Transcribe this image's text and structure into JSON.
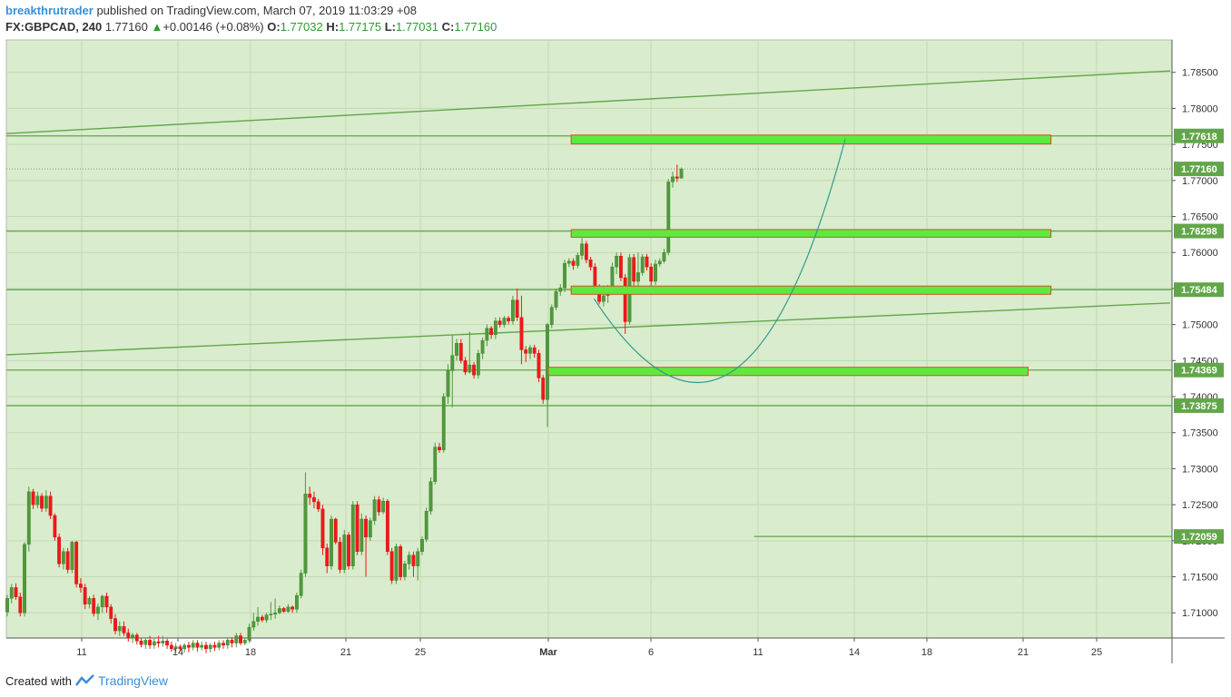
{
  "header": {
    "author": "breakthrutrader",
    "published_text": "published on TradingView.com, March 07, 2019 11:03:29 +08",
    "symbol": "FX:GBPCAD, 240",
    "last": "1.77160",
    "change": "+0.00146 (+0.08%)",
    "o_label": "O:",
    "o_val": "1.77032",
    "h_label": "H:",
    "h_val": "1.77175",
    "l_label": "L:",
    "l_val": "1.77031",
    "c_label": "C:",
    "c_val": "1.77160"
  },
  "footer": {
    "created_with": "Created with",
    "brand": "TradingView"
  },
  "chart_data": {
    "type": "candlestick",
    "symbol": "FX:GBPCAD",
    "interval": "240",
    "colors": {
      "background": "#d9eccd",
      "up": "#4f9a3b",
      "down": "#f01818",
      "line": "#62a64a",
      "zone_fill": "#5ee93e",
      "zone_border": "#c8561f",
      "curve": "#2f9b8c"
    },
    "ylim": [
      1.7065,
      1.7895
    ],
    "y_ticks": [
      "1.71000",
      "1.71500",
      "1.72000",
      "1.72500",
      "1.73000",
      "1.73500",
      "1.74000",
      "1.74500",
      "1.75000",
      "1.75500",
      "1.76000",
      "1.76500",
      "1.77000",
      "1.77500",
      "1.78000",
      "1.78500"
    ],
    "x_ticks": [
      "11",
      "14",
      "18",
      "21",
      "25",
      "Mar",
      "6",
      "11",
      "14",
      "18",
      "21",
      "25"
    ],
    "price_labels": [
      "1.77618",
      "1.77160",
      "1.76298",
      "1.75484",
      "1.74369",
      "1.73875",
      "1.72059"
    ],
    "candles": [
      [
        1.7101,
        1.712,
        1.7095,
        1.7125
      ],
      [
        1.712,
        1.7135,
        1.7113,
        1.714
      ],
      [
        1.7135,
        1.7122,
        1.7118,
        1.7141
      ],
      [
        1.7122,
        1.71,
        1.7095,
        1.7128
      ],
      [
        1.71,
        1.7195,
        1.7095,
        1.7198
      ],
      [
        1.7195,
        1.7268,
        1.7185,
        1.7275
      ],
      [
        1.7268,
        1.725,
        1.7244,
        1.7272
      ],
      [
        1.725,
        1.7262,
        1.7245,
        1.7268
      ],
      [
        1.7262,
        1.7245,
        1.724,
        1.7266
      ],
      [
        1.7245,
        1.7262,
        1.724,
        1.727
      ],
      [
        1.7262,
        1.7235,
        1.723,
        1.7268
      ],
      [
        1.7235,
        1.7205,
        1.72,
        1.7238
      ],
      [
        1.7205,
        1.7168,
        1.7163,
        1.721
      ],
      [
        1.7168,
        1.7185,
        1.716,
        1.719
      ],
      [
        1.7185,
        1.716,
        1.7155,
        1.719
      ],
      [
        1.716,
        1.7198,
        1.7155,
        1.72
      ],
      [
        1.7198,
        1.714,
        1.7135,
        1.72
      ],
      [
        1.714,
        1.7135,
        1.7128,
        1.7148
      ],
      [
        1.7135,
        1.7112,
        1.7105,
        1.714
      ],
      [
        1.7112,
        1.712,
        1.7106,
        1.7123
      ],
      [
        1.712,
        1.7099,
        1.7095,
        1.7125
      ],
      [
        1.7099,
        1.7108,
        1.709,
        1.7113
      ],
      [
        1.7108,
        1.7123,
        1.71,
        1.7125
      ],
      [
        1.7123,
        1.7108,
        1.71,
        1.7128
      ],
      [
        1.7108,
        1.7092,
        1.7085,
        1.7112
      ],
      [
        1.7092,
        1.7075,
        1.707,
        1.7098
      ],
      [
        1.7075,
        1.7081,
        1.7068,
        1.7088
      ],
      [
        1.7081,
        1.7072,
        1.7068,
        1.7088
      ],
      [
        1.7072,
        1.7065,
        1.706,
        1.7078
      ],
      [
        1.7065,
        1.7069,
        1.7058,
        1.7072
      ],
      [
        1.7069,
        1.7061,
        1.7056,
        1.7072
      ],
      [
        1.7061,
        1.7056,
        1.7052,
        1.7065
      ],
      [
        1.7056,
        1.7062,
        1.705,
        1.7066
      ],
      [
        1.7062,
        1.7055,
        1.705,
        1.7068
      ],
      [
        1.7055,
        1.706,
        1.705,
        1.7064
      ],
      [
        1.706,
        1.7058,
        1.7052,
        1.7068
      ],
      [
        1.7058,
        1.7061,
        1.7053,
        1.7068
      ],
      [
        1.7061,
        1.7055,
        1.705,
        1.7064
      ],
      [
        1.7055,
        1.705,
        1.7046,
        1.706
      ],
      [
        1.705,
        1.7053,
        1.7045,
        1.7058
      ],
      [
        1.7053,
        1.705,
        1.7046,
        1.7056
      ],
      [
        1.705,
        1.7055,
        1.7045,
        1.7058
      ],
      [
        1.7055,
        1.7052,
        1.7045,
        1.706
      ],
      [
        1.7052,
        1.7058,
        1.7048,
        1.7062
      ],
      [
        1.7058,
        1.7052,
        1.7046,
        1.7062
      ],
      [
        1.7052,
        1.7055,
        1.7048,
        1.706
      ],
      [
        1.7055,
        1.705,
        1.7044,
        1.706
      ],
      [
        1.705,
        1.7055,
        1.7045,
        1.7058
      ],
      [
        1.7055,
        1.7052,
        1.7047,
        1.706
      ],
      [
        1.7052,
        1.7058,
        1.7048,
        1.7062
      ],
      [
        1.7058,
        1.7055,
        1.705,
        1.7062
      ],
      [
        1.7055,
        1.7062,
        1.705,
        1.7066
      ],
      [
        1.7062,
        1.7058,
        1.7052,
        1.7066
      ],
      [
        1.7058,
        1.7068,
        1.7052,
        1.7072
      ],
      [
        1.7068,
        1.7058,
        1.7055,
        1.7072
      ],
      [
        1.7058,
        1.7062,
        1.7055,
        1.7066
      ],
      [
        1.7062,
        1.708,
        1.7058,
        1.7085
      ],
      [
        1.708,
        1.7088,
        1.7075,
        1.71
      ],
      [
        1.7088,
        1.7094,
        1.7082,
        1.7108
      ],
      [
        1.7094,
        1.709,
        1.7087,
        1.7097
      ],
      [
        1.709,
        1.7097,
        1.7086,
        1.71
      ],
      [
        1.7097,
        1.7098,
        1.709,
        1.7115
      ],
      [
        1.7098,
        1.71,
        1.7092,
        1.712
      ],
      [
        1.71,
        1.7106,
        1.7098,
        1.711
      ],
      [
        1.7106,
        1.7102,
        1.71,
        1.7108
      ],
      [
        1.7102,
        1.7108,
        1.71,
        1.7112
      ],
      [
        1.7108,
        1.7105,
        1.71,
        1.711
      ],
      [
        1.7105,
        1.7124,
        1.71,
        1.7128
      ],
      [
        1.7124,
        1.7155,
        1.712,
        1.716
      ],
      [
        1.7155,
        1.7265,
        1.715,
        1.7295
      ],
      [
        1.7265,
        1.726,
        1.725,
        1.7275
      ],
      [
        1.726,
        1.7254,
        1.7245,
        1.7268
      ],
      [
        1.7254,
        1.7244,
        1.724,
        1.7258
      ],
      [
        1.7244,
        1.719,
        1.718,
        1.725
      ],
      [
        1.719,
        1.7165,
        1.7155,
        1.7196
      ],
      [
        1.7165,
        1.723,
        1.716,
        1.7235
      ],
      [
        1.723,
        1.7198,
        1.7195,
        1.7232
      ],
      [
        1.7198,
        1.716,
        1.7155,
        1.7205
      ],
      [
        1.716,
        1.7208,
        1.7155,
        1.7215
      ],
      [
        1.7208,
        1.7165,
        1.716,
        1.7212
      ],
      [
        1.7165,
        1.725,
        1.716,
        1.7255
      ],
      [
        1.725,
        1.7185,
        1.718,
        1.7255
      ],
      [
        1.7185,
        1.723,
        1.718,
        1.7238
      ],
      [
        1.723,
        1.7205,
        1.715,
        1.7235
      ],
      [
        1.7205,
        1.7228,
        1.72,
        1.7232
      ],
      [
        1.7228,
        1.7257,
        1.7222,
        1.7262
      ],
      [
        1.7257,
        1.724,
        1.7235,
        1.7262
      ],
      [
        1.724,
        1.7255,
        1.7237,
        1.726
      ],
      [
        1.7255,
        1.7185,
        1.718,
        1.7258
      ],
      [
        1.7185,
        1.7145,
        1.714,
        1.719
      ],
      [
        1.7145,
        1.7192,
        1.714,
        1.7196
      ],
      [
        1.7192,
        1.715,
        1.7145,
        1.7195
      ],
      [
        1.715,
        1.7168,
        1.7145,
        1.7172
      ],
      [
        1.7168,
        1.718,
        1.716,
        1.7185
      ],
      [
        1.718,
        1.7165,
        1.715,
        1.7185
      ],
      [
        1.7165,
        1.7185,
        1.7145,
        1.719
      ],
      [
        1.7185,
        1.7202,
        1.718,
        1.7206
      ],
      [
        1.7202,
        1.7241,
        1.7198,
        1.7246
      ],
      [
        1.7241,
        1.7282,
        1.7236,
        1.7288
      ],
      [
        1.7282,
        1.733,
        1.7278,
        1.7336
      ],
      [
        1.733,
        1.7326,
        1.7322,
        1.7336
      ],
      [
        1.7326,
        1.74,
        1.7322,
        1.7405
      ],
      [
        1.74,
        1.7436,
        1.739,
        1.7445
      ],
      [
        1.7436,
        1.7457,
        1.7385,
        1.7485
      ],
      [
        1.7457,
        1.7474,
        1.745,
        1.748
      ],
      [
        1.7474,
        1.745,
        1.7446,
        1.748
      ],
      [
        1.745,
        1.7434,
        1.743,
        1.7455
      ],
      [
        1.7434,
        1.7444,
        1.7432,
        1.749
      ],
      [
        1.7444,
        1.743,
        1.7425,
        1.7448
      ],
      [
        1.743,
        1.746,
        1.7425,
        1.7465
      ],
      [
        1.746,
        1.7478,
        1.7452,
        1.7482
      ],
      [
        1.7478,
        1.7495,
        1.747,
        1.75
      ],
      [
        1.7495,
        1.7486,
        1.748,
        1.7498
      ],
      [
        1.7486,
        1.7505,
        1.748,
        1.751
      ],
      [
        1.7505,
        1.75,
        1.7496,
        1.751
      ],
      [
        1.75,
        1.7509,
        1.7496,
        1.7512
      ],
      [
        1.7509,
        1.7505,
        1.75,
        1.7512
      ],
      [
        1.7505,
        1.7534,
        1.75,
        1.754
      ],
      [
        1.7534,
        1.751,
        1.7505,
        1.755
      ],
      [
        1.751,
        1.7465,
        1.7445,
        1.754
      ],
      [
        1.7465,
        1.746,
        1.7448,
        1.747
      ],
      [
        1.746,
        1.7468,
        1.7452,
        1.7472
      ],
      [
        1.7468,
        1.746,
        1.7454,
        1.7472
      ],
      [
        1.746,
        1.7426,
        1.742,
        1.7465
      ],
      [
        1.7426,
        1.7396,
        1.739,
        1.743
      ],
      [
        1.7396,
        1.75,
        1.7358,
        1.7502
      ],
      [
        1.75,
        1.7524,
        1.7495,
        1.7528
      ],
      [
        1.7524,
        1.7546,
        1.752,
        1.755
      ],
      [
        1.7546,
        1.7551,
        1.754,
        1.7556
      ],
      [
        1.7551,
        1.7585,
        1.7545,
        1.759
      ],
      [
        1.7585,
        1.7588,
        1.758,
        1.7592
      ],
      [
        1.7588,
        1.7582,
        1.7576,
        1.7592
      ],
      [
        1.7582,
        1.7596,
        1.7578,
        1.76
      ],
      [
        1.7596,
        1.7612,
        1.759,
        1.762
      ],
      [
        1.7612,
        1.759,
        1.7585,
        1.7616
      ],
      [
        1.759,
        1.758,
        1.7575,
        1.7594
      ],
      [
        1.758,
        1.7552,
        1.7547,
        1.7585
      ],
      [
        1.7552,
        1.7532,
        1.7528,
        1.7556
      ],
      [
        1.7532,
        1.754,
        1.7525,
        1.7545
      ],
      [
        1.754,
        1.755,
        1.753,
        1.7555
      ],
      [
        1.755,
        1.758,
        1.7545,
        1.7586
      ],
      [
        1.758,
        1.7595,
        1.757,
        1.76
      ],
      [
        1.7595,
        1.7565,
        1.756,
        1.76
      ],
      [
        1.7565,
        1.7504,
        1.7487,
        1.757
      ],
      [
        1.7504,
        1.7593,
        1.75,
        1.7598
      ],
      [
        1.7593,
        1.756,
        1.7545,
        1.7598
      ],
      [
        1.756,
        1.7572,
        1.755,
        1.76
      ],
      [
        1.7572,
        1.7594,
        1.7568,
        1.7598
      ],
      [
        1.7594,
        1.758,
        1.7575,
        1.7598
      ],
      [
        1.758,
        1.756,
        1.755,
        1.7585
      ],
      [
        1.756,
        1.7584,
        1.7555,
        1.759
      ],
      [
        1.7584,
        1.7588,
        1.758,
        1.7592
      ],
      [
        1.7588,
        1.76,
        1.7585,
        1.7605
      ],
      [
        1.76,
        1.7698,
        1.7596,
        1.7702
      ],
      [
        1.7698,
        1.7705,
        1.769,
        1.7712
      ],
      [
        1.7705,
        1.7703,
        1.7698,
        1.7722
      ],
      [
        1.7703,
        1.7716,
        1.7703,
        1.7718
      ]
    ],
    "horizontal_lines": [
      1.77618,
      1.76298,
      1.75484,
      1.74369,
      1.73875
    ],
    "short_line": {
      "y": 1.72059,
      "x_from": "Mar 10",
      "x_to": "end"
    },
    "last_price_line": 1.7716,
    "zones": [
      {
        "y_top": 1.7763,
        "y_bottom": 1.77506,
        "x_from": "Mar 2",
        "x_to": "Mar 23"
      },
      {
        "y_top": 1.76318,
        "y_bottom": 1.76212,
        "x_from": "Mar 2",
        "x_to": "Mar 23"
      },
      {
        "y_top": 1.75534,
        "y_bottom": 1.7542,
        "x_from": "Mar 2",
        "x_to": "Mar 23"
      },
      {
        "y_top": 1.74407,
        "y_bottom": 1.74293,
        "x_from": "Mar 1",
        "x_to": "Mar 22"
      }
    ],
    "trend_lines": [
      {
        "from": [
          "start",
          1.7765
        ],
        "to": [
          "end",
          1.7852
        ]
      },
      {
        "from": [
          "start",
          1.7458
        ],
        "to": [
          "end",
          1.753
        ]
      }
    ],
    "curve": {
      "from": [
        "Mar 3",
        1.7536
      ],
      "via": [
        "Mar 9",
        1.7434
      ],
      "to": [
        "Mar 14",
        1.7758
      ]
    }
  }
}
